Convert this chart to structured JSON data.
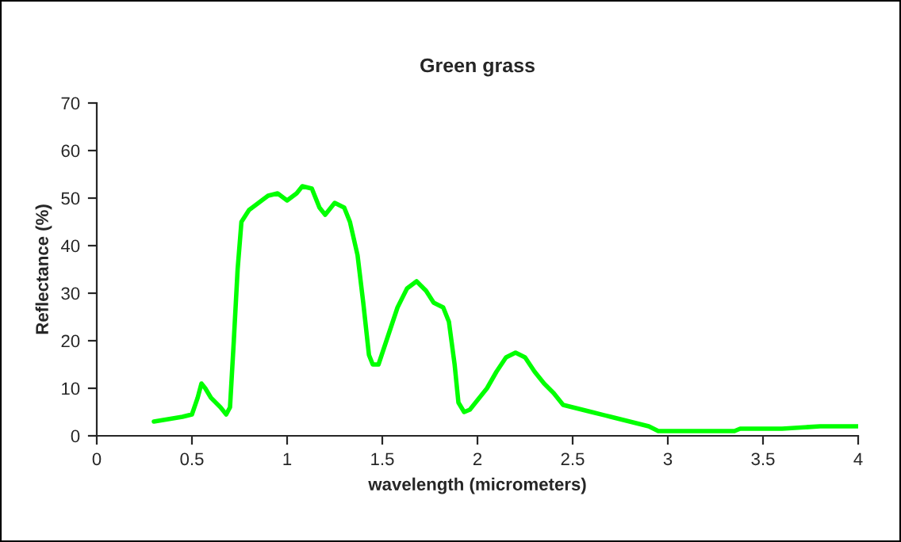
{
  "chart_data": {
    "type": "line",
    "title": "Green grass",
    "xlabel": "wavelength (micrometers)",
    "ylabel": "Reflectance (%)",
    "x": [
      0.3,
      0.45,
      0.5,
      0.53,
      0.55,
      0.57,
      0.6,
      0.65,
      0.68,
      0.7,
      0.72,
      0.74,
      0.76,
      0.8,
      0.85,
      0.9,
      0.95,
      1.0,
      1.05,
      1.08,
      1.13,
      1.17,
      1.2,
      1.25,
      1.3,
      1.33,
      1.37,
      1.4,
      1.43,
      1.45,
      1.48,
      1.53,
      1.58,
      1.63,
      1.68,
      1.73,
      1.77,
      1.82,
      1.85,
      1.88,
      1.9,
      1.93,
      1.96,
      2.0,
      2.05,
      2.1,
      2.15,
      2.2,
      2.25,
      2.3,
      2.35,
      2.4,
      2.45,
      2.5,
      2.6,
      2.7,
      2.8,
      2.9,
      2.95,
      3.0,
      3.35,
      3.38,
      3.6,
      3.8,
      4.0
    ],
    "series": [
      {
        "color": "#00ff00",
        "values": [
          3,
          4,
          4.5,
          8,
          11,
          10,
          8,
          6,
          4.5,
          6,
          20,
          35,
          45,
          47.5,
          49,
          50.5,
          51,
          49.5,
          51,
          52.5,
          52,
          48,
          46.5,
          49,
          48,
          45,
          38,
          28,
          17,
          15,
          15,
          21,
          27,
          31,
          32.5,
          30.5,
          28,
          27,
          24,
          15,
          7,
          5,
          5.5,
          7.5,
          10,
          13.5,
          16.5,
          17.5,
          16.5,
          13.5,
          11,
          9,
          6.5,
          6,
          5,
          4,
          3,
          2,
          1,
          1,
          1,
          1.5,
          1.5,
          2,
          2
        ]
      }
    ],
    "xlim": [
      0,
      4
    ],
    "xticks": [
      0,
      0.5,
      1,
      1.5,
      2,
      2.5,
      3,
      3.5,
      4
    ],
    "ylim": [
      0,
      70
    ],
    "yticks": [
      0,
      10,
      20,
      30,
      40,
      50,
      60,
      70
    ],
    "grid": false,
    "marker": "none",
    "line_style": "solid"
  }
}
